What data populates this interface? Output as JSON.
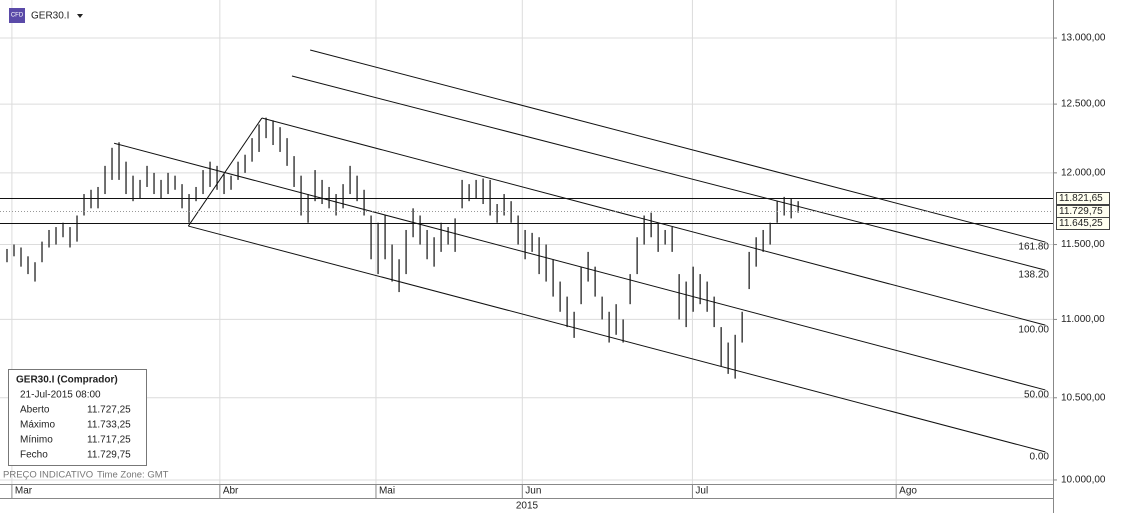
{
  "header": {
    "symbol": "GER30.I",
    "icon": "CFD"
  },
  "footer": {
    "note": "PREÇO INDICATIVO",
    "timezone": "Time Zone: GMT"
  },
  "info_box": {
    "title": "GER30.I (Comprador)",
    "date": "21-Jul-2015 08:00",
    "rows": [
      [
        "Aberto",
        "11.727,25"
      ],
      [
        "Máximo",
        "11.733,25"
      ],
      [
        "Mínimo",
        "11.717,25"
      ],
      [
        "Fecho",
        "11.729,75"
      ]
    ]
  },
  "chart_data": {
    "type": "hilo",
    "color": "#111111",
    "log_scale": true,
    "grid": true,
    "x_axis_title": "2015",
    "xlim": [
      0,
      150.4
    ],
    "xticks": [
      {
        "value": 1.7,
        "label": "Mar"
      },
      {
        "value": 31.4,
        "label": "Abr"
      },
      {
        "value": 53.7,
        "label": "Mai"
      },
      {
        "value": 74.6,
        "label": "Jun"
      },
      {
        "value": 98.9,
        "label": "Jul"
      },
      {
        "value": 128,
        "label": "Ago"
      }
    ],
    "ylim": [
      9976,
      13297
    ],
    "yticks": [
      {
        "value": 10000,
        "label": "10.000,00"
      },
      {
        "value": 10500,
        "label": "10.500,00"
      },
      {
        "value": 11000,
        "label": "11.000,00"
      },
      {
        "value": 11500,
        "label": "11.500,00"
      },
      {
        "value": 12000,
        "label": "12.000,00"
      },
      {
        "value": 12500,
        "label": "12.500,00"
      },
      {
        "value": 13000,
        "label": "13.000,00"
      }
    ],
    "x": [
      1,
      2,
      3,
      4,
      5,
      6,
      7,
      8,
      9,
      10,
      11,
      12,
      13,
      14,
      15,
      16,
      17,
      18,
      19,
      20,
      21,
      22,
      23,
      24,
      25,
      26,
      27,
      28,
      29,
      30,
      31,
      32,
      33,
      34,
      35,
      36,
      37,
      38,
      39,
      40,
      41,
      42,
      43,
      44,
      45,
      46,
      47,
      48,
      49,
      50,
      51,
      52,
      53,
      54,
      55,
      56,
      57,
      58,
      59,
      60,
      61,
      62,
      63,
      64,
      65,
      66,
      67,
      68,
      69,
      70,
      71,
      72,
      73,
      74,
      75,
      76,
      77,
      78,
      79,
      80,
      81,
      82,
      83,
      84,
      85,
      86,
      87,
      88,
      89,
      90,
      91,
      92,
      93,
      94,
      95,
      96,
      97,
      98,
      99,
      100,
      101,
      102,
      103,
      104,
      105,
      106,
      107,
      108,
      109,
      110,
      111,
      112,
      113,
      114
    ],
    "low": [
      11380,
      11420,
      11350,
      11300,
      11250,
      11380,
      11480,
      11500,
      11550,
      11480,
      11520,
      11700,
      11750,
      11750,
      11850,
      11950,
      11950,
      11850,
      11800,
      11820,
      11900,
      11850,
      11820,
      11850,
      11880,
      11750,
      11650,
      11800,
      11850,
      11900,
      11880,
      11850,
      11880,
      11950,
      12000,
      12080,
      12150,
      12250,
      12200,
      12150,
      12050,
      11900,
      11700,
      11650,
      11800,
      11780,
      11750,
      11700,
      11750,
      11850,
      11800,
      11700,
      11400,
      11300,
      11400,
      11250,
      11180,
      11300,
      11550,
      11500,
      11400,
      11350,
      11450,
      11500,
      11450,
      11750,
      11800,
      11820,
      11780,
      11700,
      11650,
      11700,
      11650,
      11500,
      11400,
      11450,
      11300,
      11250,
      11150,
      11050,
      10950,
      10880,
      11100,
      11250,
      11150,
      11000,
      10850,
      10900,
      10850,
      11100,
      11300,
      11500,
      11550,
      11450,
      11500,
      11450,
      11000,
      10950,
      11050,
      11100,
      11050,
      10950,
      10700,
      10650,
      10620,
      10850,
      11200,
      11350,
      11450,
      11500,
      11650,
      11700,
      11680,
      11720
    ],
    "high": [
      11470,
      11500,
      11480,
      11420,
      11380,
      11520,
      11600,
      11620,
      11650,
      11620,
      11700,
      11850,
      11880,
      11900,
      12050,
      12180,
      12220,
      12080,
      11980,
      11950,
      12050,
      12000,
      11950,
      12000,
      11980,
      11920,
      11850,
      11900,
      12020,
      12080,
      12050,
      11990,
      11980,
      12080,
      12130,
      12250,
      12350,
      12400,
      12380,
      12330,
      12250,
      12120,
      11980,
      11850,
      12020,
      11950,
      11900,
      11850,
      11920,
      12050,
      11980,
      11880,
      11700,
      11650,
      11700,
      11500,
      11400,
      11600,
      11750,
      11700,
      11600,
      11550,
      11650,
      11620,
      11680,
      11950,
      11920,
      11950,
      11960,
      11950,
      11780,
      11850,
      11800,
      11700,
      11600,
      11580,
      11550,
      11500,
      11400,
      11250,
      11150,
      11050,
      11350,
      11450,
      11350,
      11150,
      11050,
      11100,
      11000,
      11300,
      11550,
      11700,
      11720,
      11650,
      11600,
      11620,
      11300,
      11250,
      11350,
      11300,
      11250,
      11150,
      10950,
      10850,
      10900,
      11050,
      11450,
      11550,
      11600,
      11650,
      11800,
      11830,
      11820,
      11800
    ],
    "levels": [
      {
        "value": 11821.65,
        "label": "11.821,65",
        "style": "solid"
      },
      {
        "value": 11729.75,
        "label": "11.729,75",
        "style": "dotted"
      },
      {
        "value": 11645.25,
        "label": "11.645,25",
        "style": "solid"
      }
    ],
    "channels": [
      {
        "label": "161.80",
        "x": [
          44.3,
          149.3
        ],
        "y": [
          12908,
          11517
        ]
      },
      {
        "label": "138.20",
        "x": [
          41.7,
          149.3
        ],
        "y": [
          12710,
          11327
        ]
      },
      {
        "label": "100.00",
        "x": [
          37.4,
          149.3
        ],
        "y": [
          12397,
          10963
        ]
      },
      {
        "label": "50.00",
        "x": [
          16.3,
          149.3
        ],
        "y": [
          12213,
          10549
        ]
      },
      {
        "label": "0.00",
        "x": [
          26.9,
          149.3
        ],
        "y": [
          11627,
          10168
        ]
      }
    ],
    "median": {
      "x": [
        26.9,
        37.4
      ],
      "y": [
        11627,
        12397
      ]
    }
  }
}
